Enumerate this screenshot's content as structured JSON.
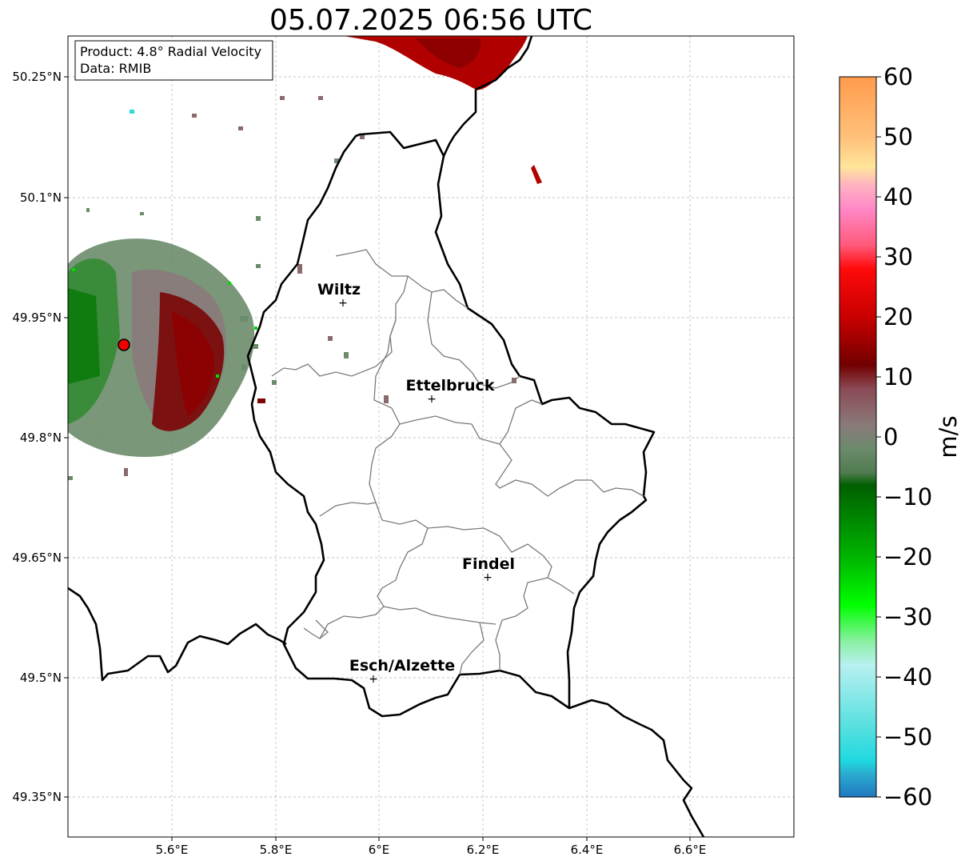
{
  "title": "05.07.2025 06:56 UTC",
  "info_box": {
    "product": "Product: 4.8° Radial Velocity",
    "data": "Data: RMIB"
  },
  "map": {
    "lon_range": [
      5.4,
      6.8
    ],
    "lat_range": [
      49.3,
      50.3
    ],
    "x_ticks": [
      "5.6°E",
      "5.8°E",
      "6°E",
      "6.2°E",
      "6.4°E",
      "6.6°E"
    ],
    "y_ticks": [
      "49.35°N",
      "49.5°N",
      "49.65°N",
      "49.8°N",
      "49.95°N",
      "50.1°N",
      "50.25°N"
    ],
    "grid": true,
    "radar_site": "red dot marker",
    "cities": [
      {
        "name": "Wiltz"
      },
      {
        "name": "Ettelbruck"
      },
      {
        "name": "Findel"
      },
      {
        "name": "Esch/Alzette"
      }
    ]
  },
  "colorbar": {
    "unit": "m/s",
    "range": [
      -60,
      60
    ],
    "ticks": [
      "60",
      "50",
      "40",
      "30",
      "20",
      "10",
      "0",
      "−10",
      "−20",
      "−30",
      "−40",
      "−50",
      "−60"
    ],
    "stops": [
      {
        "v": 60,
        "color": "#ff9b4d"
      },
      {
        "v": 50,
        "color": "#ffc07a"
      },
      {
        "v": 45,
        "color": "#ffe59a"
      },
      {
        "v": 42,
        "color": "#ffb3c0"
      },
      {
        "v": 38,
        "color": "#ff88c8"
      },
      {
        "v": 32,
        "color": "#ff5a7a"
      },
      {
        "v": 28,
        "color": "#ff0a0a"
      },
      {
        "v": 20,
        "color": "#c90000"
      },
      {
        "v": 12,
        "color": "#720000"
      },
      {
        "v": 8,
        "color": "#8a4a55"
      },
      {
        "v": 2,
        "color": "#8a7a7a"
      },
      {
        "v": -2,
        "color": "#6c8a6c"
      },
      {
        "v": -6,
        "color": "#4f7b4f"
      },
      {
        "v": -8,
        "color": "#005f00"
      },
      {
        "v": -20,
        "color": "#00b400"
      },
      {
        "v": -28,
        "color": "#00ff00"
      },
      {
        "v": -34,
        "color": "#88f0a0"
      },
      {
        "v": -38,
        "color": "#b8f0f0"
      },
      {
        "v": -48,
        "color": "#5ae0e0"
      },
      {
        "v": -54,
        "color": "#20d8e0"
      },
      {
        "v": -56,
        "color": "#2aaed0"
      },
      {
        "v": -60,
        "color": "#2178c0"
      }
    ]
  }
}
